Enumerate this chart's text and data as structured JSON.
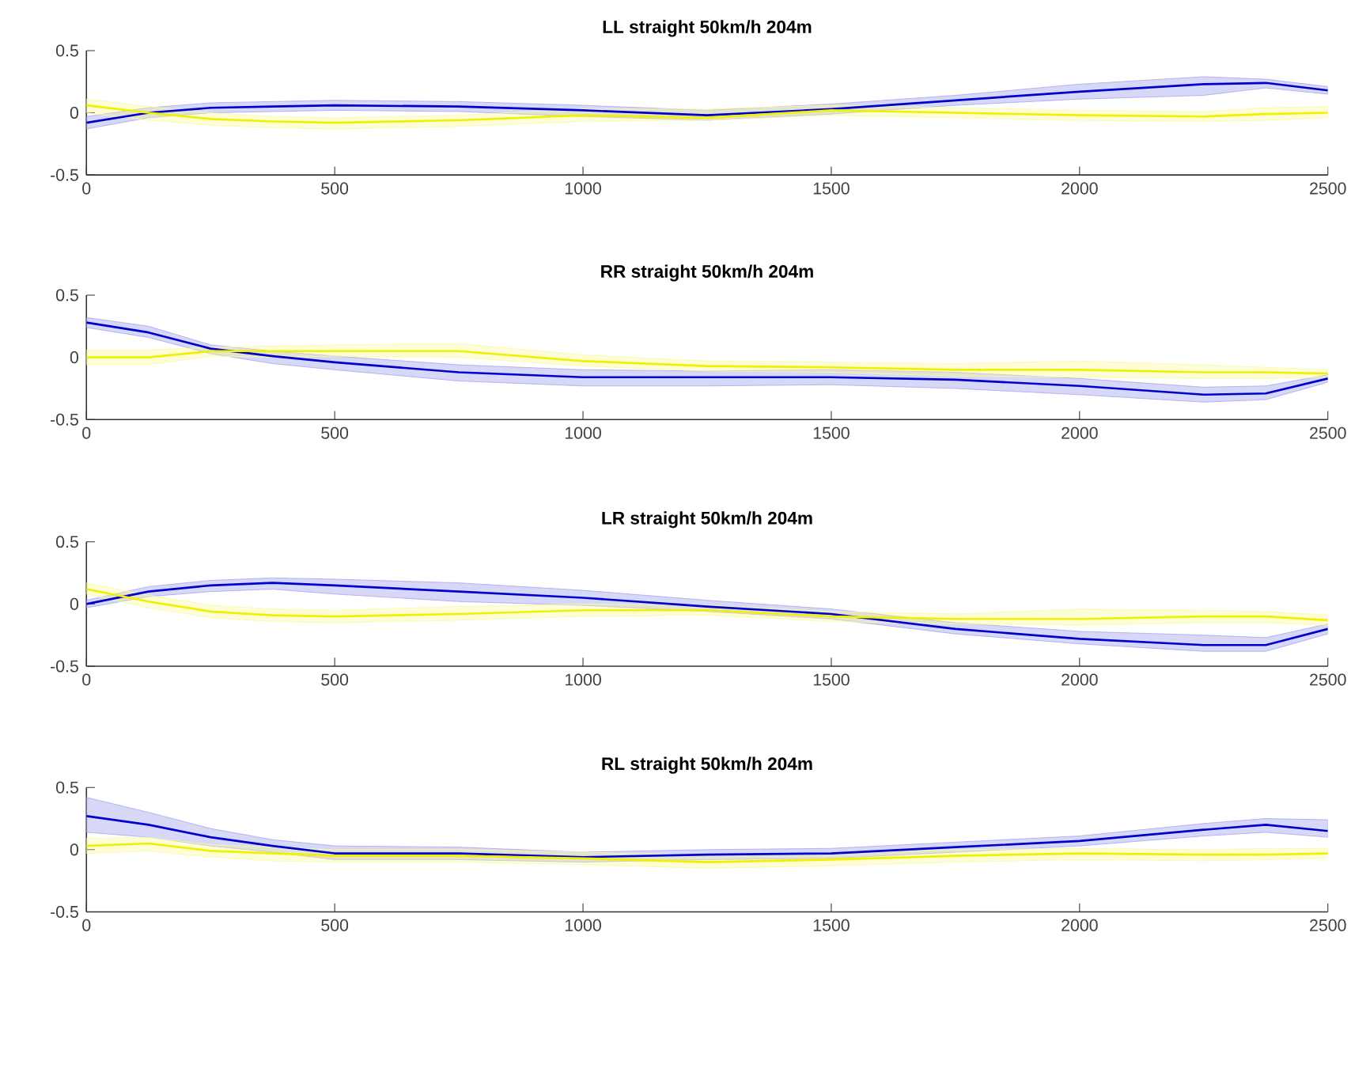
{
  "chart_data": [
    {
      "type": "line",
      "title": "LL straight 50km/h 204m",
      "x": [
        0,
        125,
        250,
        375,
        500,
        750,
        1000,
        1250,
        1500,
        1750,
        2000,
        2250,
        2375,
        2500
      ],
      "xlim": [
        0,
        2500
      ],
      "xticks": [
        0,
        500,
        1000,
        1500,
        2000,
        2500
      ],
      "ylim": [
        -0.5,
        0.5
      ],
      "yticks": [
        -0.5,
        0,
        0.5
      ],
      "grid": false,
      "line_style": "solid",
      "marker": "none",
      "series": [
        {
          "color": "#0000cd",
          "values": [
            -0.08,
            0.0,
            0.04,
            0.05,
            0.06,
            0.05,
            0.02,
            -0.02,
            0.03,
            0.1,
            0.17,
            0.23,
            0.24,
            0.18
          ],
          "lower": [
            -0.13,
            -0.04,
            0.0,
            0.01,
            0.02,
            0.01,
            -0.03,
            -0.06,
            -0.01,
            0.06,
            0.11,
            0.14,
            0.2,
            0.15
          ],
          "upper": [
            -0.03,
            0.04,
            0.08,
            0.09,
            0.1,
            0.09,
            0.06,
            0.02,
            0.07,
            0.14,
            0.23,
            0.29,
            0.27,
            0.21
          ]
        },
        {
          "color": "#f0f000",
          "values": [
            0.06,
            0.0,
            -0.05,
            -0.07,
            -0.08,
            -0.06,
            -0.02,
            -0.04,
            0.02,
            0.0,
            -0.02,
            -0.03,
            -0.01,
            0.0
          ],
          "lower": [
            0.0,
            -0.06,
            -0.1,
            -0.12,
            -0.13,
            -0.11,
            -0.07,
            -0.06,
            -0.02,
            -0.04,
            -0.06,
            -0.07,
            -0.06,
            -0.04
          ],
          "upper": [
            0.11,
            0.05,
            0.0,
            -0.03,
            -0.04,
            -0.02,
            0.03,
            0.03,
            0.06,
            0.04,
            0.02,
            0.01,
            0.04,
            0.05
          ]
        }
      ]
    },
    {
      "type": "line",
      "title": "RR straight 50km/h 204m",
      "x": [
        0,
        125,
        250,
        375,
        500,
        750,
        1000,
        1250,
        1500,
        1750,
        2000,
        2250,
        2375,
        2500
      ],
      "xlim": [
        0,
        2500
      ],
      "xticks": [
        0,
        500,
        1000,
        1500,
        2000,
        2500
      ],
      "ylim": [
        -0.5,
        0.5
      ],
      "yticks": [
        -0.5,
        0,
        0.5
      ],
      "grid": false,
      "line_style": "solid",
      "marker": "none",
      "series": [
        {
          "color": "#0000cd",
          "values": [
            0.28,
            0.2,
            0.07,
            0.01,
            -0.04,
            -0.12,
            -0.16,
            -0.16,
            -0.16,
            -0.18,
            -0.23,
            -0.3,
            -0.29,
            -0.17
          ],
          "lower": [
            0.24,
            0.16,
            0.03,
            -0.05,
            -0.1,
            -0.19,
            -0.23,
            -0.23,
            -0.22,
            -0.25,
            -0.3,
            -0.36,
            -0.34,
            -0.2
          ],
          "upper": [
            0.32,
            0.25,
            0.1,
            0.05,
            0.01,
            -0.06,
            -0.1,
            -0.11,
            -0.1,
            -0.12,
            -0.17,
            -0.24,
            -0.23,
            -0.14
          ]
        },
        {
          "color": "#f0f000",
          "values": [
            0.0,
            0.0,
            0.05,
            0.05,
            0.05,
            0.05,
            -0.03,
            -0.07,
            -0.08,
            -0.1,
            -0.1,
            -0.12,
            -0.12,
            -0.13
          ],
          "lower": [
            -0.06,
            -0.06,
            0.01,
            0.0,
            0.01,
            0.0,
            -0.07,
            -0.11,
            -0.12,
            -0.15,
            -0.16,
            -0.17,
            -0.17,
            -0.16
          ],
          "upper": [
            0.06,
            0.06,
            0.08,
            0.09,
            0.1,
            0.11,
            0.02,
            -0.03,
            -0.04,
            -0.05,
            -0.03,
            -0.06,
            -0.08,
            -0.1
          ]
        }
      ]
    },
    {
      "type": "line",
      "title": "LR straight 50km/h 204m",
      "x": [
        0,
        125,
        250,
        375,
        500,
        750,
        1000,
        1250,
        1500,
        1750,
        2000,
        2250,
        2375,
        2500
      ],
      "xlim": [
        0,
        2500
      ],
      "xticks": [
        0,
        500,
        1000,
        1500,
        2000,
        2500
      ],
      "ylim": [
        -0.5,
        0.5
      ],
      "yticks": [
        -0.5,
        0,
        0.5
      ],
      "grid": false,
      "line_style": "solid",
      "marker": "none",
      "series": [
        {
          "color": "#0000cd",
          "values": [
            0.0,
            0.1,
            0.15,
            0.17,
            0.15,
            0.1,
            0.05,
            -0.02,
            -0.08,
            -0.2,
            -0.28,
            -0.33,
            -0.33,
            -0.2
          ],
          "lower": [
            -0.03,
            0.06,
            0.1,
            0.12,
            0.08,
            0.02,
            -0.01,
            -0.06,
            -0.12,
            -0.24,
            -0.32,
            -0.38,
            -0.38,
            -0.24
          ],
          "upper": [
            0.03,
            0.14,
            0.19,
            0.21,
            0.2,
            0.17,
            0.11,
            0.03,
            -0.04,
            -0.15,
            -0.22,
            -0.25,
            -0.27,
            -0.16
          ]
        },
        {
          "color": "#f0f000",
          "values": [
            0.12,
            0.02,
            -0.06,
            -0.09,
            -0.1,
            -0.08,
            -0.05,
            -0.05,
            -0.1,
            -0.12,
            -0.12,
            -0.1,
            -0.1,
            -0.13
          ],
          "lower": [
            0.08,
            -0.03,
            -0.11,
            -0.14,
            -0.15,
            -0.13,
            -0.1,
            -0.09,
            -0.14,
            -0.16,
            -0.17,
            -0.15,
            -0.15,
            -0.17
          ],
          "upper": [
            0.17,
            0.07,
            -0.01,
            -0.04,
            -0.05,
            -0.02,
            0.0,
            -0.01,
            -0.06,
            -0.08,
            -0.04,
            -0.05,
            -0.06,
            -0.09
          ]
        }
      ]
    },
    {
      "type": "line",
      "title": "RL straight 50km/h 204m",
      "x": [
        0,
        125,
        250,
        375,
        500,
        750,
        1000,
        1250,
        1500,
        1750,
        2000,
        2250,
        2375,
        2500
      ],
      "xlim": [
        0,
        2500
      ],
      "xticks": [
        0,
        500,
        1000,
        1500,
        2000,
        2500
      ],
      "ylim": [
        -0.5,
        0.5
      ],
      "yticks": [
        -0.5,
        0,
        0.5
      ],
      "grid": false,
      "line_style": "solid",
      "marker": "none",
      "series": [
        {
          "color": "#0000cd",
          "values": [
            0.27,
            0.2,
            0.1,
            0.03,
            -0.03,
            -0.03,
            -0.06,
            -0.04,
            -0.03,
            0.02,
            0.07,
            0.16,
            0.2,
            0.15
          ],
          "lower": [
            0.14,
            0.1,
            0.03,
            -0.02,
            -0.08,
            -0.08,
            -0.1,
            -0.08,
            -0.07,
            -0.02,
            0.03,
            0.11,
            0.14,
            0.1
          ],
          "upper": [
            0.42,
            0.3,
            0.17,
            0.08,
            0.03,
            0.02,
            -0.02,
            0.0,
            0.01,
            0.06,
            0.11,
            0.21,
            0.25,
            0.24
          ]
        },
        {
          "color": "#f0f000",
          "values": [
            0.03,
            0.05,
            -0.01,
            -0.03,
            -0.05,
            -0.05,
            -0.07,
            -0.1,
            -0.08,
            -0.05,
            -0.03,
            -0.04,
            -0.04,
            -0.03
          ],
          "lower": [
            -0.03,
            -0.01,
            -0.06,
            -0.09,
            -0.1,
            -0.1,
            -0.12,
            -0.15,
            -0.13,
            -0.1,
            -0.08,
            -0.09,
            -0.08,
            -0.07
          ],
          "upper": [
            0.09,
            0.1,
            0.04,
            0.02,
            0.0,
            0.0,
            -0.02,
            -0.05,
            -0.03,
            0.0,
            0.01,
            0.0,
            0.01,
            0.01
          ]
        }
      ]
    }
  ]
}
